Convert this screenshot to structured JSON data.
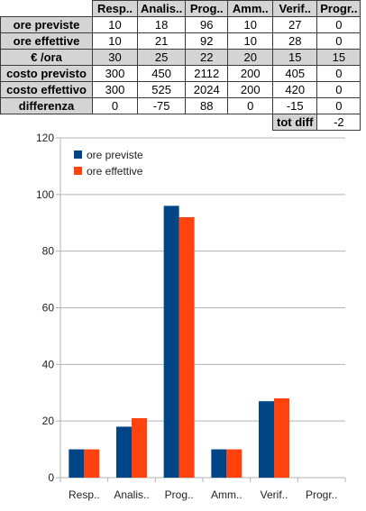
{
  "table": {
    "columns": [
      "Resp..",
      "Analis..",
      "Prog..",
      "Amm..",
      "Verif..",
      "Progr.."
    ],
    "rows": [
      {
        "label": "ore previste",
        "cells": [
          "10",
          "18",
          "96",
          "10",
          "27",
          "0"
        ]
      },
      {
        "label": "ore effettive",
        "cells": [
          "10",
          "21",
          "92",
          "10",
          "28",
          "0"
        ]
      },
      {
        "label": "€ /ora",
        "cells": [
          "30",
          "25",
          "22",
          "20",
          "15",
          "15"
        ]
      },
      {
        "label": "costo previsto",
        "cells": [
          "300",
          "450",
          "2112",
          "200",
          "405",
          "0"
        ]
      },
      {
        "label": "costo effettivo",
        "cells": [
          "300",
          "525",
          "2024",
          "200",
          "420",
          "0"
        ]
      },
      {
        "label": "differenza",
        "cells": [
          "0",
          "-75",
          "88",
          "0",
          "-15",
          "0"
        ]
      }
    ],
    "tot_diff": {
      "label": "tot diff",
      "value": "-2"
    },
    "cell_colors": {
      "red": "#dd1c1c",
      "green": "#15a14a",
      "header_bg": "#d4d4d4"
    }
  },
  "chart_data": {
    "type": "bar",
    "categories": [
      "Resp..",
      "Analis..",
      "Prog..",
      "Amm..",
      "Verif..",
      "Progr.."
    ],
    "series": [
      {
        "name": "ore previste",
        "values": [
          10,
          18,
          96,
          10,
          27,
          0
        ],
        "color": "#004586"
      },
      {
        "name": "ore effettive",
        "values": [
          10,
          21,
          92,
          10,
          28,
          0
        ],
        "color": "#ff420e"
      }
    ],
    "ylim": [
      0,
      120
    ],
    "yticks": [
      0,
      20,
      40,
      60,
      80,
      100,
      120
    ],
    "grid": true,
    "legend": "top-left",
    "title": "",
    "xlabel": "",
    "ylabel": ""
  }
}
